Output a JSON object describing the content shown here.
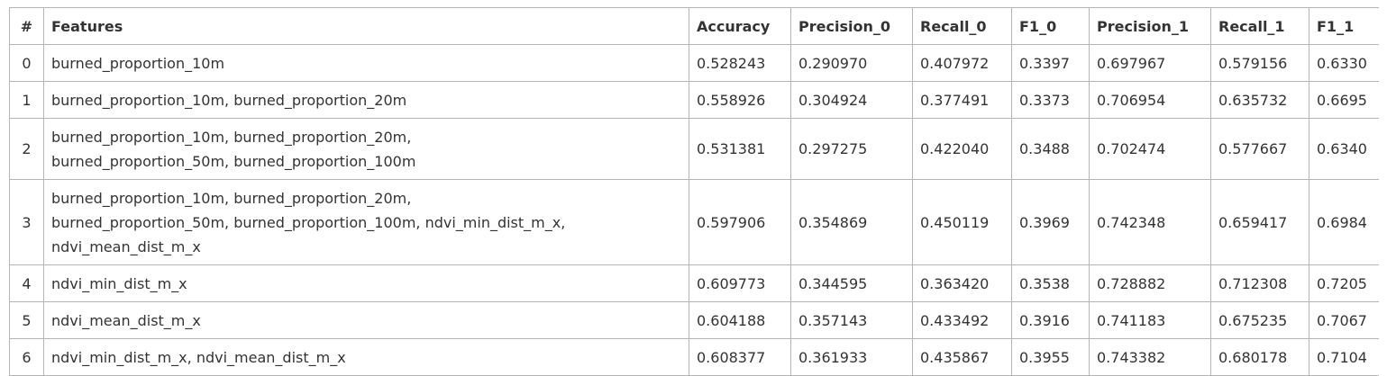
{
  "table": {
    "headers": [
      "#",
      "Features",
      "Accuracy",
      "Precision_0",
      "Recall_0",
      "F1_0",
      "Precision_1",
      "Recall_1",
      "F1_1"
    ],
    "rows": [
      {
        "index": "0",
        "features": [
          "burned_proportion_10m"
        ],
        "accuracy": "0.528243",
        "precision_0": "0.290970",
        "recall_0": "0.407972",
        "f1_0": "0.3397",
        "precision_1": "0.697967",
        "recall_1": "0.579156",
        "f1_1": "0.6330"
      },
      {
        "index": "1",
        "features": [
          "burned_proportion_10m, burned_proportion_20m"
        ],
        "accuracy": "0.558926",
        "precision_0": "0.304924",
        "recall_0": "0.377491",
        "f1_0": "0.3373",
        "precision_1": "0.706954",
        "recall_1": "0.635732",
        "f1_1": "0.6695"
      },
      {
        "index": "2",
        "features": [
          "burned_proportion_10m, burned_proportion_20m,",
          "burned_proportion_50m, burned_proportion_100m"
        ],
        "accuracy": "0.531381",
        "precision_0": "0.297275",
        "recall_0": "0.422040",
        "f1_0": "0.3488",
        "precision_1": "0.702474",
        "recall_1": "0.577667",
        "f1_1": "0.6340"
      },
      {
        "index": "3",
        "features": [
          "burned_proportion_10m, burned_proportion_20m,",
          "burned_proportion_50m, burned_proportion_100m, ndvi_min_dist_m_x,",
          "ndvi_mean_dist_m_x"
        ],
        "accuracy": "0.597906",
        "precision_0": "0.354869",
        "recall_0": "0.450119",
        "f1_0": "0.3969",
        "precision_1": "0.742348",
        "recall_1": "0.659417",
        "f1_1": "0.6984"
      },
      {
        "index": "4",
        "features": [
          "ndvi_min_dist_m_x"
        ],
        "accuracy": "0.609773",
        "precision_0": "0.344595",
        "recall_0": "0.363420",
        "f1_0": "0.3538",
        "precision_1": "0.728882",
        "recall_1": "0.712308",
        "f1_1": "0.7205"
      },
      {
        "index": "5",
        "features": [
          "ndvi_mean_dist_m_x"
        ],
        "accuracy": "0.604188",
        "precision_0": "0.357143",
        "recall_0": "0.433492",
        "f1_0": "0.3916",
        "precision_1": "0.741183",
        "recall_1": "0.675235",
        "f1_1": "0.7067"
      },
      {
        "index": "6",
        "features": [
          "ndvi_min_dist_m_x, ndvi_mean_dist_m_x"
        ],
        "accuracy": "0.608377",
        "precision_0": "0.361933",
        "recall_0": "0.435867",
        "f1_0": "0.3955",
        "precision_1": "0.743382",
        "recall_1": "0.680178",
        "f1_1": "0.7104"
      }
    ]
  }
}
